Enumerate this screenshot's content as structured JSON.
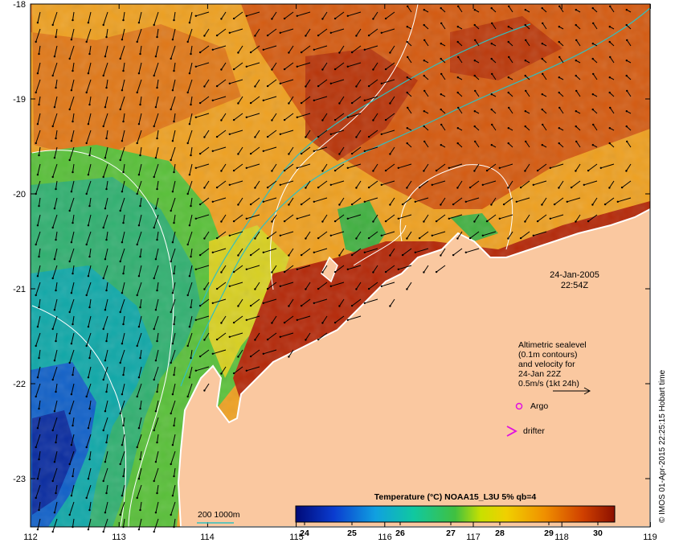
{
  "map": {
    "timestamp_date": "24-Jan-2005",
    "timestamp_time": "22:54Z",
    "x_ticks": [
      "112",
      "113",
      "114",
      "115",
      "116",
      "117",
      "118",
      "119"
    ],
    "y_ticks": [
      "-18",
      "-19",
      "-20",
      "-21",
      "-22",
      "-23"
    ],
    "legend": {
      "line1": "Altimetric sealevel",
      "line2": "(0.1m contours)",
      "line3": "and velocity for",
      "line4": "24-Jan 22Z",
      "line5": "0.5m/s (1kt 24h)",
      "argo": "Argo",
      "drifter": "drifter"
    },
    "isobath_label": "200  1000m",
    "colorbar": {
      "title": "Temperature (°C) NOAA15_L3U 5% qb=4",
      "ticks": [
        "24",
        "25",
        "26",
        "27",
        "28",
        "29",
        "30"
      ]
    },
    "credit": "© IMOS 01-Apr-2015 22:25:15 Hobart time",
    "colors": {
      "land": "#fac8a0",
      "warm": "#b41e00",
      "mid": "#f0a000",
      "cool": "#20b440",
      "cold": "#0a3cb4",
      "isobath": "#30c0c0",
      "marker": "#e010e0"
    }
  }
}
